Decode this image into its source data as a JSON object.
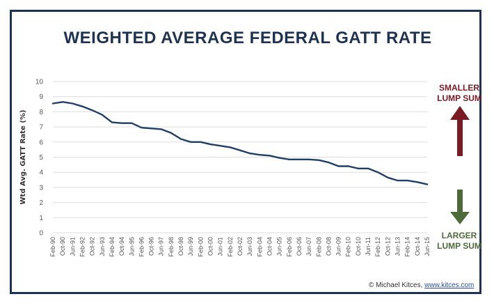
{
  "chart_data": {
    "type": "line",
    "title": "WEIGHTED AVERAGE FEDERAL GATT RATE",
    "ylabel": "Wtd Avg. GATT Rate (%)",
    "xlabel": "",
    "ylim": [
      0,
      10
    ],
    "yticks": [
      "0",
      "1",
      "2",
      "3",
      "4",
      "5",
      "6",
      "7",
      "8",
      "9",
      "10"
    ],
    "grid": true,
    "line_color": "#1f3f66",
    "x_tick_labels": [
      "Feb-90",
      "Oct-90",
      "Jun-91",
      "Feb-92",
      "Oct-92",
      "Jun-93",
      "Feb-94",
      "Oct-94",
      "Jun-95",
      "Feb-96",
      "Oct-96",
      "Jun-97",
      "Feb-98",
      "Oct-98",
      "Jun-99",
      "Feb-00",
      "Oct-00",
      "Jun-01",
      "Feb-02",
      "Oct-02",
      "Jun-03",
      "Feb-04",
      "Oct-04",
      "Jun-05",
      "Feb-06",
      "Oct-06",
      "Jun-07",
      "Feb-08",
      "Oct-08",
      "Jun-09",
      "Feb-10",
      "Oct-10",
      "Jun-11",
      "Feb-12",
      "Oct-12",
      "Jun-13",
      "Feb-14",
      "Oct-14",
      "Jun-15"
    ],
    "x": [
      "Feb-90",
      "Oct-90",
      "Jun-91",
      "Feb-92",
      "Oct-92",
      "Jun-93",
      "Feb-94",
      "Oct-94",
      "Jun-95",
      "Feb-96",
      "Oct-96",
      "Jun-97",
      "Feb-98",
      "Oct-98",
      "Jun-99",
      "Feb-00",
      "Oct-00",
      "Jun-01",
      "Feb-02",
      "Oct-02",
      "Jun-03",
      "Feb-04",
      "Oct-04",
      "Jun-05",
      "Feb-06",
      "Oct-06",
      "Jun-07",
      "Feb-08",
      "Oct-08",
      "Jun-09",
      "Feb-10",
      "Oct-10",
      "Jun-11",
      "Feb-12",
      "Oct-12",
      "Jun-13",
      "Feb-14",
      "Oct-14",
      "Jun-15"
    ],
    "series": [
      {
        "values": [
          8.55,
          8.65,
          8.55,
          8.35,
          8.1,
          7.8,
          7.3,
          7.25,
          7.25,
          6.95,
          6.9,
          6.85,
          6.6,
          6.2,
          6.0,
          6.0,
          5.85,
          5.75,
          5.65,
          5.45,
          5.25,
          5.15,
          5.1,
          4.95,
          4.85,
          4.85,
          4.85,
          4.8,
          4.65,
          4.4,
          4.4,
          4.25,
          4.25,
          4.0,
          3.65,
          3.45,
          3.45,
          3.35,
          3.2
        ]
      }
    ]
  },
  "annotations": {
    "smaller_line1": "SMALLER",
    "smaller_line2": "LUMP SUM",
    "larger_line1": "LARGER",
    "larger_line2": "LUMP SUM",
    "up_arrow_color": "#7a1a22",
    "down_arrow_color": "#4c6a3a",
    "up_arrow_icon": "up-arrow-icon",
    "down_arrow_icon": "down-arrow-icon"
  },
  "credit": {
    "prefix": "© Michael Kitces, ",
    "link": "www.kitces.com"
  }
}
